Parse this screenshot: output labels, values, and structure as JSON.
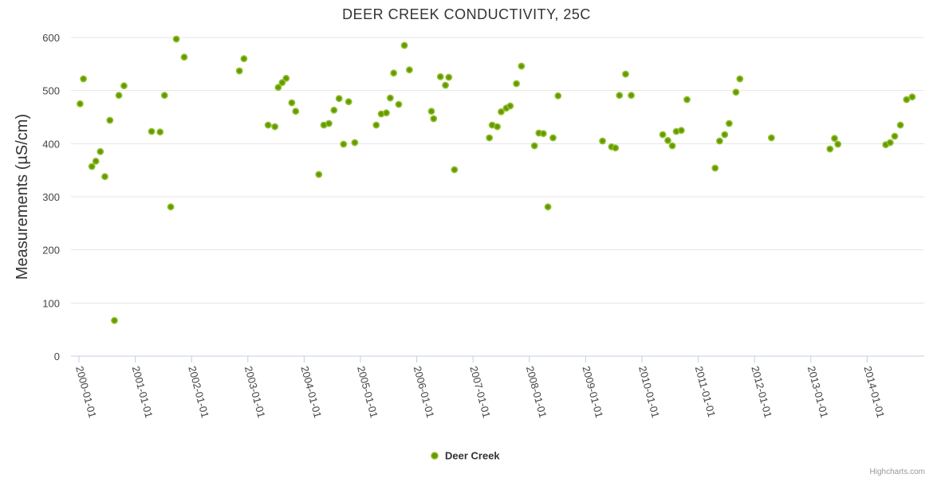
{
  "chart_data": {
    "type": "scatter",
    "title": "DEER CREEK CONDUCTIVITY, 25C",
    "ylabel": "Measurements (µS/cm)",
    "xlabel": "",
    "ylim": [
      0,
      600
    ],
    "yticks": [
      0,
      100,
      200,
      300,
      400,
      500,
      600
    ],
    "xlim_years": [
      1999.9,
      2014.85
    ],
    "xticks": [
      {
        "year": 2000,
        "label": "2000-01-01"
      },
      {
        "year": 2001,
        "label": "2001-01-01"
      },
      {
        "year": 2002,
        "label": "2002-01-01"
      },
      {
        "year": 2003,
        "label": "2003-01-01"
      },
      {
        "year": 2004,
        "label": "2004-01-01"
      },
      {
        "year": 2005,
        "label": "2005-01-01"
      },
      {
        "year": 2006,
        "label": "2006-01-01"
      },
      {
        "year": 2007,
        "label": "2007-01-01"
      },
      {
        "year": 2008,
        "label": "2008-01-01"
      },
      {
        "year": 2009,
        "label": "2009-01-01"
      },
      {
        "year": 2010,
        "label": "2010-01-01"
      },
      {
        "year": 2011,
        "label": "2011-01-01"
      },
      {
        "year": 2012,
        "label": "2012-01-01"
      },
      {
        "year": 2013,
        "label": "2013-01-01"
      },
      {
        "year": 2014,
        "label": "2014-01-01"
      }
    ],
    "grid": true,
    "legend": {
      "position": "bottom-center"
    },
    "series": [
      {
        "name": "Deer Creek",
        "color": "#669900",
        "points": [
          [
            2000.02,
            475
          ],
          [
            2000.08,
            522
          ],
          [
            2000.23,
            357
          ],
          [
            2000.3,
            367
          ],
          [
            2000.38,
            385
          ],
          [
            2000.46,
            338
          ],
          [
            2000.55,
            444
          ],
          [
            2000.63,
            67
          ],
          [
            2000.71,
            491
          ],
          [
            2000.8,
            509
          ],
          [
            2001.29,
            423
          ],
          [
            2001.44,
            422
          ],
          [
            2001.52,
            491
          ],
          [
            2001.63,
            281
          ],
          [
            2001.73,
            597
          ],
          [
            2001.87,
            563
          ],
          [
            2002.85,
            537
          ],
          [
            2002.93,
            560
          ],
          [
            2003.36,
            435
          ],
          [
            2003.48,
            432
          ],
          [
            2003.54,
            506
          ],
          [
            2003.61,
            515
          ],
          [
            2003.68,
            523
          ],
          [
            2003.78,
            477
          ],
          [
            2003.85,
            461
          ],
          [
            2004.26,
            342
          ],
          [
            2004.35,
            435
          ],
          [
            2004.44,
            438
          ],
          [
            2004.53,
            463
          ],
          [
            2004.62,
            485
          ],
          [
            2004.7,
            399
          ],
          [
            2004.79,
            479
          ],
          [
            2004.9,
            402
          ],
          [
            2005.28,
            435
          ],
          [
            2005.37,
            456
          ],
          [
            2005.46,
            458
          ],
          [
            2005.53,
            486
          ],
          [
            2005.59,
            533
          ],
          [
            2005.68,
            474
          ],
          [
            2005.78,
            585
          ],
          [
            2005.87,
            539
          ],
          [
            2006.26,
            461
          ],
          [
            2006.3,
            447
          ],
          [
            2006.42,
            526
          ],
          [
            2006.51,
            510
          ],
          [
            2006.57,
            525
          ],
          [
            2006.67,
            351
          ],
          [
            2007.29,
            411
          ],
          [
            2007.34,
            435
          ],
          [
            2007.43,
            432
          ],
          [
            2007.5,
            460
          ],
          [
            2007.59,
            467
          ],
          [
            2007.66,
            471
          ],
          [
            2007.77,
            513
          ],
          [
            2007.86,
            546
          ],
          [
            2008.09,
            396
          ],
          [
            2008.17,
            420
          ],
          [
            2008.25,
            419
          ],
          [
            2008.33,
            281
          ],
          [
            2008.42,
            411
          ],
          [
            2008.51,
            490
          ],
          [
            2009.3,
            405
          ],
          [
            2009.46,
            394
          ],
          [
            2009.53,
            392
          ],
          [
            2009.6,
            491
          ],
          [
            2009.71,
            531
          ],
          [
            2009.81,
            491
          ],
          [
            2010.37,
            417
          ],
          [
            2010.46,
            406
          ],
          [
            2010.54,
            396
          ],
          [
            2010.61,
            423
          ],
          [
            2010.7,
            425
          ],
          [
            2010.8,
            483
          ],
          [
            2011.3,
            354
          ],
          [
            2011.38,
            405
          ],
          [
            2011.47,
            417
          ],
          [
            2011.55,
            438
          ],
          [
            2011.67,
            497
          ],
          [
            2011.74,
            522
          ],
          [
            2012.3,
            411
          ],
          [
            2013.34,
            390
          ],
          [
            2013.42,
            410
          ],
          [
            2013.48,
            399
          ],
          [
            2014.33,
            398
          ],
          [
            2014.41,
            402
          ],
          [
            2014.49,
            414
          ],
          [
            2014.59,
            435
          ],
          [
            2014.7,
            483
          ],
          [
            2014.8,
            488
          ]
        ]
      }
    ]
  },
  "credits": "Highcharts.com"
}
